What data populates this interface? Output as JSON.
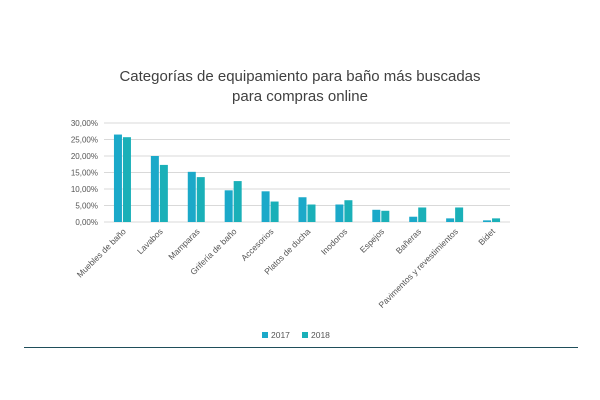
{
  "chart_data": {
    "type": "bar",
    "title_lines": [
      "Categorías de equipamiento para baño más buscadas",
      "para compras online"
    ],
    "categories": [
      "Muebles de baño",
      "Lavabos",
      "Mamparas",
      "Grifería de baño",
      "Accesorios",
      "Platos de ducha",
      "Inodoros",
      "Espejos",
      "Bañeras",
      "Pavimentos y revestimientos",
      "Bidet"
    ],
    "series": [
      {
        "name": "2017",
        "color": "#1ba9c9",
        "values": [
          26.5,
          20.0,
          15.2,
          9.6,
          9.3,
          7.5,
          5.3,
          3.7,
          1.6,
          1.1,
          0.5
        ]
      },
      {
        "name": "2018",
        "color": "#1ab0b8",
        "values": [
          25.7,
          17.3,
          13.6,
          12.4,
          6.2,
          5.3,
          6.6,
          3.4,
          4.4,
          4.4,
          1.1
        ]
      }
    ],
    "y_ticks": [
      "0,00%",
      "5,00%",
      "10,00%",
      "15,00%",
      "20,00%",
      "25,00%",
      "30,00%"
    ],
    "ylim": [
      0,
      30
    ],
    "grid": true,
    "legend_position": "bottom"
  }
}
